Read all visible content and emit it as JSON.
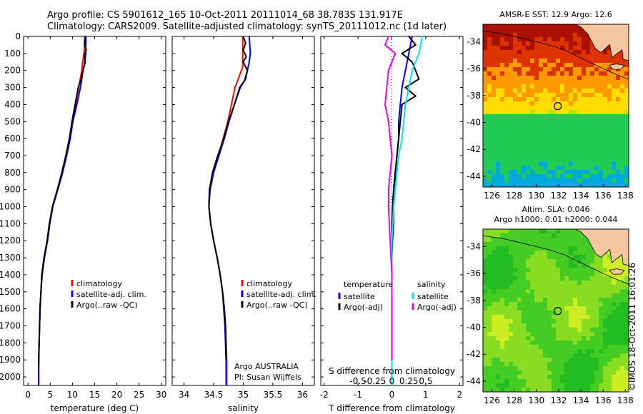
{
  "header": {
    "line1": "Argo profile: CS 5901612_165 10-Oct-2011 20111014_68 38.783S 131.917E",
    "line2": "Climatology: CARS2009. Satellite-adjusted climatology: synTS_20111012.nc (1d later)"
  },
  "stamp": "©IMOS 18-Oct-2011 16:01:26",
  "chart_data": [
    {
      "type": "line",
      "xlabel": "temperature (deg C)",
      "ylabel": "",
      "xlim": [
        -1,
        31
      ],
      "ylim": [
        2050,
        0
      ],
      "xticks": [
        0,
        5,
        10,
        15,
        20,
        25,
        30
      ],
      "yticks": [
        0,
        100,
        200,
        300,
        400,
        500,
        600,
        700,
        800,
        900,
        1000,
        1100,
        1200,
        1300,
        1400,
        1500,
        1600,
        1700,
        1800,
        1900,
        2000
      ],
      "legend": [
        "climatology",
        "satellite-adj. clim.",
        "Argo(..raw -QC)"
      ],
      "colors": [
        "#ff0000",
        "#0000ff",
        "#000000"
      ],
      "series": [
        {
          "name": "climatology",
          "x": [
            12.8,
            12.6,
            12.3,
            12.1,
            11.4,
            10.7,
            9.9,
            9.4,
            8.6,
            7.7,
            6.6,
            5.5,
            4.8,
            4.3,
            3.6,
            3.1,
            2.9,
            2.7,
            2.6,
            2.5,
            2.4,
            2.4
          ],
          "y": [
            0,
            100,
            150,
            200,
            300,
            400,
            500,
            600,
            700,
            800,
            900,
            1000,
            1100,
            1200,
            1300,
            1400,
            1500,
            1600,
            1700,
            1800,
            1900,
            2050
          ]
        },
        {
          "name": "satellite-adj. clim.",
          "x": [
            13.0,
            13.0,
            12.8,
            12.4,
            11.8,
            11.0,
            10.1,
            9.5,
            8.7,
            7.8,
            6.7,
            5.6,
            4.9,
            4.4,
            3.7,
            3.2,
            2.9,
            2.7,
            2.6,
            2.5,
            2.4,
            2.4
          ],
          "y": [
            0,
            100,
            150,
            200,
            300,
            400,
            500,
            600,
            700,
            800,
            900,
            1000,
            1100,
            1200,
            1300,
            1400,
            1500,
            1600,
            1700,
            1800,
            1900,
            2050
          ]
        },
        {
          "name": "Argo(..raw -QC)",
          "x": [
            12.9,
            12.7,
            13.1,
            12.6,
            12.9,
            12.4,
            12.0,
            11.3,
            10.6,
            9.9,
            9.3,
            8.5,
            7.6,
            6.6,
            5.5,
            4.8,
            4.3,
            3.6,
            3.1,
            2.9,
            2.7,
            2.6,
            2.5,
            2.4
          ],
          "y": [
            0,
            40,
            80,
            110,
            150,
            200,
            250,
            300,
            400,
            500,
            600,
            700,
            800,
            900,
            1000,
            1100,
            1200,
            1300,
            1400,
            1500,
            1600,
            1700,
            1800,
            1950
          ]
        }
      ]
    },
    {
      "type": "line",
      "xlabel": "salinity",
      "xlim": [
        33.8,
        36.2
      ],
      "ylim": [
        2050,
        0
      ],
      "xticks": [
        34,
        34.5,
        35,
        35.5,
        36
      ],
      "legend": [
        "climatology",
        "satellite-adj. clim.",
        "Argo(..raw -QC)"
      ],
      "colors": [
        "#ff0000",
        "#0000ff",
        "#000000"
      ],
      "annotations": [
        "Argo AUSTRALIA",
        "PI: Susan Wijffels"
      ],
      "series": [
        {
          "name": "climatology",
          "x": [
            34.99,
            34.99,
            34.99,
            34.99,
            34.86,
            34.8,
            34.74,
            34.66,
            34.58,
            34.49,
            34.43,
            34.42,
            34.45,
            34.5,
            34.56,
            34.61,
            34.65,
            34.68,
            34.7,
            34.71,
            34.72,
            34.72
          ],
          "y": [
            0,
            100,
            150,
            180,
            300,
            400,
            500,
            600,
            700,
            800,
            900,
            1000,
            1100,
            1200,
            1300,
            1400,
            1500,
            1600,
            1700,
            1800,
            1900,
            2050
          ]
        },
        {
          "name": "satellite-adj. clim.",
          "x": [
            35.1,
            35.12,
            35.1,
            35.04,
            34.95,
            34.85,
            34.76,
            34.68,
            34.59,
            34.5,
            34.44,
            34.42,
            34.45,
            34.5,
            34.56,
            34.61,
            34.65,
            34.67,
            34.69,
            34.7,
            34.71,
            34.71
          ],
          "y": [
            0,
            100,
            150,
            250,
            300,
            400,
            500,
            600,
            700,
            800,
            900,
            1000,
            1100,
            1200,
            1300,
            1400,
            1500,
            1600,
            1700,
            1800,
            1900,
            2050
          ]
        },
        {
          "name": "Argo(..raw -QC)",
          "x": [
            35.0,
            35.04,
            35.0,
            35.05,
            35.0,
            35.07,
            35.02,
            34.94,
            34.85,
            34.75,
            34.67,
            34.57,
            34.48,
            34.43,
            34.42,
            34.45,
            34.5,
            34.56,
            34.61,
            34.65,
            34.68,
            34.7,
            34.71
          ],
          "y": [
            0,
            40,
            80,
            120,
            150,
            200,
            260,
            300,
            400,
            500,
            600,
            700,
            800,
            900,
            1000,
            1100,
            1200,
            1300,
            1400,
            1500,
            1600,
            1700,
            1900
          ]
        }
      ]
    },
    {
      "type": "line",
      "xlabel": "T difference from climatology",
      "xlabel_top": "S difference from climatology",
      "xlim": [
        -2.1,
        2.1
      ],
      "ylim": [
        2050,
        0
      ],
      "xticks": [
        -2,
        -1,
        0,
        1,
        2
      ],
      "xticks_top": [
        -0.5,
        -0.25,
        0,
        0.25,
        0.5
      ],
      "legend_titles": [
        "temperature",
        "salinity"
      ],
      "legend": [
        "satellite",
        "Argo(-adj)",
        "satellite",
        "Argo(-adj)"
      ],
      "colors": [
        "#0000ff",
        "#000000",
        "#00e5ee",
        "#ee00ee"
      ],
      "series": [
        {
          "name": "satellite",
          "x": [
            0.6,
            0.5,
            0.4,
            0.3,
            0.25,
            0.2,
            0.2,
            0.15,
            0.1,
            0.1,
            0.05,
            0.05,
            0.02,
            0.0,
            0.0,
            0.0,
            0.0,
            0.0,
            0.0,
            0.0,
            0.0,
            0.0
          ],
          "y": [
            0,
            100,
            200,
            300,
            400,
            500,
            600,
            700,
            800,
            900,
            1000,
            1100,
            1200,
            1300,
            1400,
            1500,
            1600,
            1700,
            1800,
            1900,
            2000,
            2050
          ]
        },
        {
          "name": "Argo(-adj)",
          "x": [
            0.5,
            0.7,
            0.3,
            0.6,
            0.8,
            0.4,
            0.7,
            0.3,
            0.25,
            0.2,
            0.15,
            0.1,
            0.05,
            0.02,
            0.0,
            0.0,
            0.0,
            0.0,
            0.0,
            0.0
          ],
          "y": [
            0,
            50,
            100,
            150,
            250,
            300,
            350,
            400,
            500,
            600,
            700,
            800,
            900,
            1000,
            1100,
            1300,
            1500,
            1700,
            1900,
            2000
          ]
        },
        {
          "name": "satellite",
          "x": [
            0.9,
            0.8,
            0.6,
            0.5,
            0.4,
            0.35,
            0.3,
            0.2,
            0.15,
            0.1,
            0.05,
            0.0,
            0.0,
            0.0,
            0.0,
            0.0
          ],
          "y": [
            0,
            100,
            200,
            300,
            400,
            500,
            600,
            700,
            800,
            900,
            1000,
            1200,
            1400,
            1600,
            1800,
            2050
          ]
        },
        {
          "name": "Argo(-adj)",
          "x": [
            -0.1,
            -0.2,
            0.1,
            -0.1,
            -0.15,
            -0.2,
            -0.1,
            -0.05,
            0.0,
            -0.05,
            -0.1,
            -0.1,
            -0.05,
            0.0,
            0.0,
            0.0
          ],
          "y": [
            0,
            50,
            100,
            200,
            300,
            400,
            500,
            600,
            700,
            800,
            900,
            1000,
            1200,
            1400,
            1600,
            1900
          ]
        }
      ]
    },
    {
      "type": "heatmap",
      "title": "AMSR-E SST: 12.9 Argo: 12.6",
      "xlim": [
        125.2,
        138.3
      ],
      "ylim": [
        -44.8,
        -32.7
      ],
      "xticks": [
        126,
        128,
        130,
        132,
        134,
        136,
        138
      ],
      "yticks": [
        -34,
        -36,
        -38,
        -40,
        -42,
        -44
      ],
      "marker": {
        "x": 131.917,
        "y": -38.783
      },
      "colors": [
        "#00aadd",
        "#22cc55",
        "#bbdd00",
        "#ffdd00",
        "#ff9900",
        "#dd3300",
        "#aa1100"
      ]
    },
    {
      "type": "heatmap",
      "title": "Altim. SLA: 0.046",
      "subtitle": "Argo h1000: 0.01 h2000: 0.044",
      "xlim": [
        125.2,
        138.3
      ],
      "ylim": [
        -44.8,
        -32.7
      ],
      "xticks": [
        126,
        128,
        130,
        132,
        134,
        136,
        138
      ],
      "yticks": [
        -34,
        -36,
        -38,
        -40,
        -42,
        -44
      ],
      "marker": {
        "x": 131.917,
        "y": -38.783
      },
      "colors": [
        "#22bb22",
        "#44cc22",
        "#88dd22",
        "#ccee22"
      ]
    }
  ]
}
